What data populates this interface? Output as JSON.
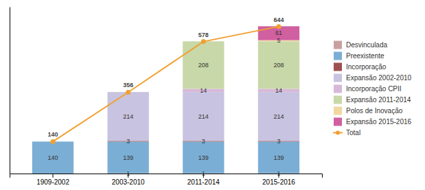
{
  "chart_data": {
    "type": "bar",
    "stacked": true,
    "data_labels": true,
    "tick_labels": "x",
    "legend": "right",
    "categories": [
      "1909-2002",
      "2003-2010",
      "2011-2014",
      "2015-2016"
    ],
    "ylim": [
      0,
      730
    ],
    "series": [
      {
        "name": "Desvinculada",
        "type": "bar",
        "color": "#c9a0a0",
        "values": [
          0,
          1,
          1,
          1
        ]
      },
      {
        "name": "Preexistente",
        "type": "bar",
        "color": "#7baed5",
        "values": [
          140,
          139,
          139,
          139
        ]
      },
      {
        "name": "Incorporação",
        "type": "bar",
        "color": "#a05050",
        "values": [
          0,
          3,
          3,
          3
        ]
      },
      {
        "name": "Expansão 2002-2010",
        "type": "bar",
        "color": "#c8c3e0",
        "values": [
          0,
          214,
          214,
          214
        ]
      },
      {
        "name": "Incorporação CPII",
        "type": "bar",
        "color": "#d8b8d8",
        "values": [
          0,
          0,
          14,
          14
        ]
      },
      {
        "name": "Expansão 2011-2014",
        "type": "bar",
        "color": "#c8d8a8",
        "values": [
          0,
          0,
          208,
          208
        ]
      },
      {
        "name": "Polos de Inovação",
        "type": "bar",
        "color": "#f0d8a0",
        "values": [
          0,
          0,
          0,
          5
        ]
      },
      {
        "name": "Expansão 2015-2016",
        "type": "bar",
        "color": "#d060a0",
        "values": [
          0,
          0,
          0,
          61
        ]
      },
      {
        "name": "Total",
        "type": "line",
        "color": "#f0a030",
        "marker": "circle",
        "values": [
          140,
          356,
          578,
          644
        ]
      }
    ]
  }
}
